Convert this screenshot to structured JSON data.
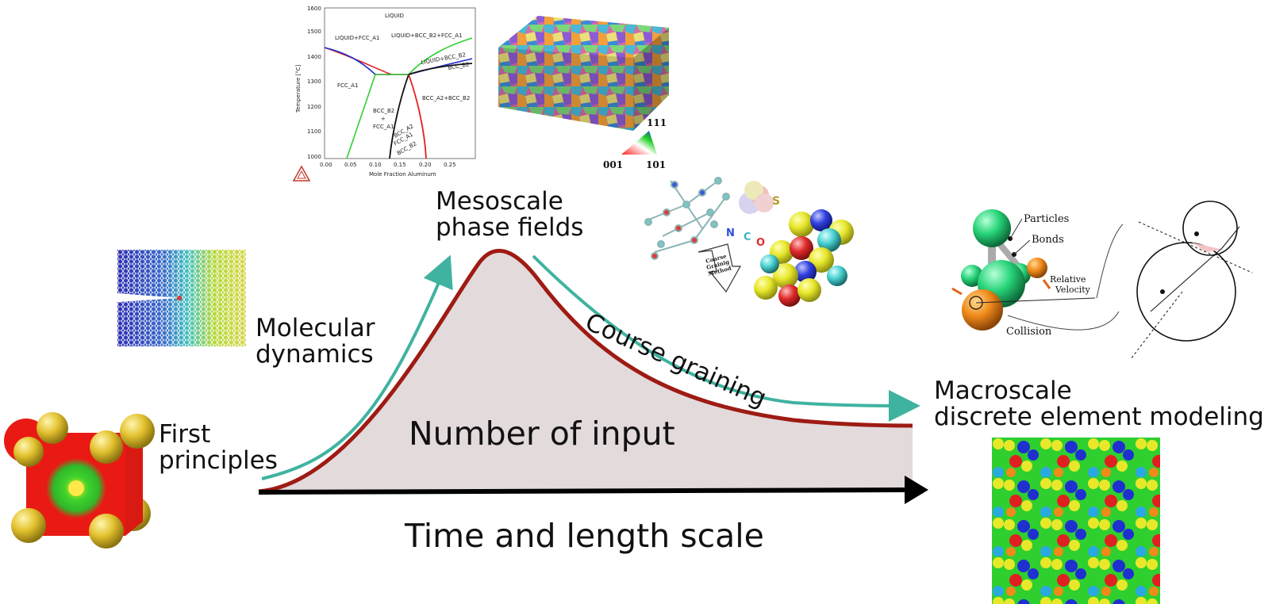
{
  "main_curve": {
    "curve_label": "Number of input",
    "axis_label": "Time and length scale",
    "colors": {
      "curve": "#9e1b14",
      "fill": "#e2dadb",
      "arrow": "#3fb39f",
      "axis": "#000000"
    }
  },
  "stages": {
    "first": {
      "line1": "First",
      "line2": "principles"
    },
    "molecular": {
      "line1": "Molecular",
      "line2": "dynamics"
    },
    "meso": {
      "line1": "Mesoscale",
      "line2": "phase fields"
    },
    "coarse": {
      "label": "Course graining"
    },
    "macro": {
      "line1": "Macroscale",
      "line2": "discrete element modeling"
    }
  },
  "phase_diagram": {
    "ylabel": "Temperature [°C]",
    "xlabel": "Mole Fraction Aluminum",
    "yticks": [
      "1000",
      "1100",
      "1200",
      "1300",
      "1400",
      "1500",
      "1600"
    ],
    "xticks": [
      "0.00",
      "0.05",
      "0.10",
      "0.15",
      "0.20",
      "0.25"
    ],
    "regions": {
      "liquid": "LIQUID",
      "liq_fcc": "LIQUID+FCC_A1",
      "liq_bcc_fcc": "LIQUID+BCC_B2+FCC_A1",
      "liq_bcc": "LIQUID+BCC_B2",
      "bcc_b2": "BCC_B2",
      "fcc_a1": "FCC_A1",
      "bcc_a2_b2": "BCC_A2+BCC_B2",
      "bcc_fcc_1": "BCC_B2",
      "bcc_fcc_2": "+",
      "bcc_fcc_3": "FCC_A1",
      "tri_1": "BCC_A2",
      "tri_2": "FCC_A1",
      "tri_3": "BCC_B2"
    }
  },
  "ipf_key": {
    "top": "111",
    "left": "001",
    "right": "101"
  },
  "cg_figure": {
    "atoms": {
      "n": "N",
      "c": "C",
      "o": "O",
      "s": "S"
    },
    "method": {
      "l1": "Coarse",
      "l2": "Grainig",
      "l3": "Method"
    }
  },
  "dem_figure": {
    "particles": "Particles",
    "bonds": "Bonds",
    "relative": "Relative",
    "velocity": "Velocity",
    "collision": "Collision"
  }
}
